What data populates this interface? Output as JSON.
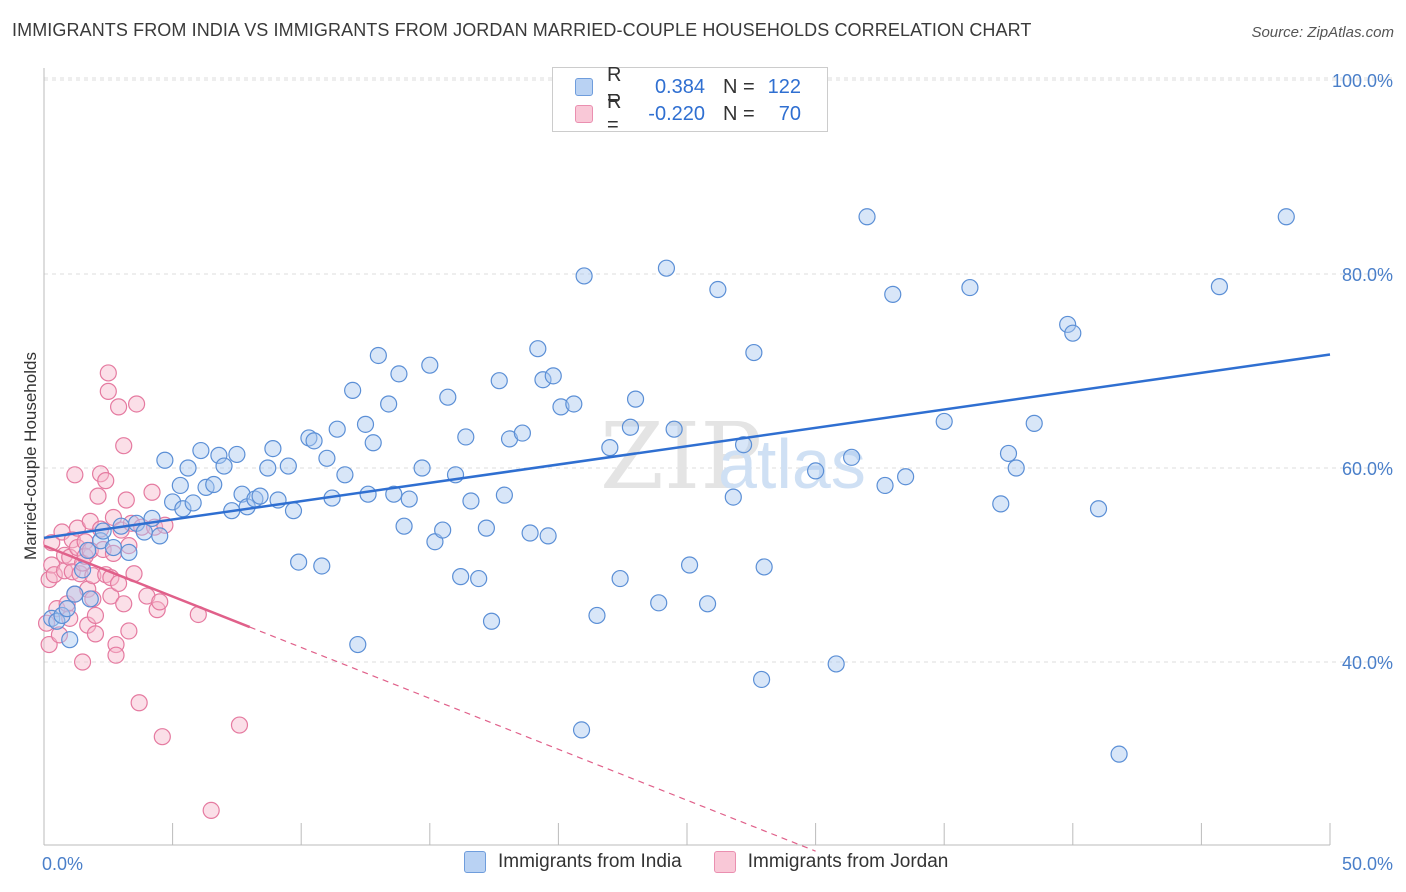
{
  "title": "IMMIGRANTS FROM INDIA VS IMMIGRANTS FROM JORDAN MARRIED-COUPLE HOUSEHOLDS CORRELATION CHART",
  "source": "Source: ZipAtlas.com",
  "watermark": {
    "zip": "ZIP",
    "atlas": "atlas"
  },
  "legend": {
    "india": {
      "r_label": "R =",
      "r_value": "0.384",
      "n_label": "N =",
      "n_value": "122"
    },
    "jordan": {
      "r_label": "R =",
      "r_value": "-0.220",
      "n_label": "N =",
      "n_value": "70"
    }
  },
  "colors": {
    "india_fill": "#a8c8f0",
    "india_stroke": "#5b8fd6",
    "india_line": "#2f6fd1",
    "jordan_fill": "#f6b8cb",
    "jordan_stroke": "#e57aa0",
    "jordan_line": "#e0608a",
    "axis_text": "#4a7fc9",
    "grid": "#dddddd"
  },
  "chart_data": {
    "type": "scatter",
    "title": "IMMIGRANTS FROM INDIA VS IMMIGRANTS FROM JORDAN MARRIED-COUPLE HOUSEHOLDS CORRELATION CHART",
    "xlabel": "",
    "ylabel": "Married-couple Households",
    "xlim": [
      0,
      50
    ],
    "ylim": [
      20,
      100
    ],
    "x_tick_labels": {
      "left": "0.0%",
      "right": "50.0%"
    },
    "y_ticks": [
      {
        "value": 100,
        "label": "100.0%"
      },
      {
        "value": 80,
        "label": "80.0%"
      },
      {
        "value": 60,
        "label": "60.0%"
      },
      {
        "value": 40,
        "label": "40.0%"
      }
    ],
    "series": [
      {
        "name": "Immigrants from India",
        "trend": {
          "x": [
            0,
            50
          ],
          "y": [
            52.8,
            71.7
          ],
          "dashed_extension": false
        },
        "points": [
          [
            0.3,
            44.5
          ],
          [
            0.5,
            44.2
          ],
          [
            0.7,
            44.8
          ],
          [
            0.9,
            45.5
          ],
          [
            1.0,
            42.3
          ],
          [
            1.2,
            47.0
          ],
          [
            1.5,
            49.5
          ],
          [
            1.7,
            51.5
          ],
          [
            1.8,
            46.5
          ],
          [
            2.2,
            52.5
          ],
          [
            2.3,
            53.5
          ],
          [
            2.7,
            51.8
          ],
          [
            3.0,
            54.0
          ],
          [
            3.3,
            51.3
          ],
          [
            3.6,
            54.3
          ],
          [
            3.9,
            53.4
          ],
          [
            4.2,
            54.8
          ],
          [
            4.5,
            53.0
          ],
          [
            4.7,
            60.8
          ],
          [
            5.0,
            56.5
          ],
          [
            5.3,
            58.2
          ],
          [
            5.4,
            55.8
          ],
          [
            5.6,
            60.0
          ],
          [
            5.8,
            56.4
          ],
          [
            6.1,
            61.8
          ],
          [
            6.3,
            58.0
          ],
          [
            6.6,
            58.3
          ],
          [
            6.8,
            61.3
          ],
          [
            7.0,
            60.2
          ],
          [
            7.3,
            55.6
          ],
          [
            7.5,
            61.4
          ],
          [
            7.7,
            57.3
          ],
          [
            7.9,
            56.0
          ],
          [
            8.2,
            56.8
          ],
          [
            8.4,
            57.1
          ],
          [
            8.7,
            60.0
          ],
          [
            8.9,
            62.0
          ],
          [
            9.1,
            56.7
          ],
          [
            9.5,
            60.2
          ],
          [
            9.7,
            55.6
          ],
          [
            9.9,
            50.3
          ],
          [
            10.3,
            63.1
          ],
          [
            10.5,
            62.8
          ],
          [
            10.8,
            49.9
          ],
          [
            11.0,
            61.0
          ],
          [
            11.2,
            56.9
          ],
          [
            11.4,
            64.0
          ],
          [
            11.7,
            59.3
          ],
          [
            12.0,
            68.0
          ],
          [
            12.2,
            41.8
          ],
          [
            12.5,
            64.5
          ],
          [
            12.6,
            57.3
          ],
          [
            12.8,
            62.6
          ],
          [
            13.0,
            71.6
          ],
          [
            13.4,
            66.6
          ],
          [
            13.6,
            57.3
          ],
          [
            13.8,
            69.7
          ],
          [
            14.0,
            54.0
          ],
          [
            14.2,
            56.8
          ],
          [
            14.7,
            60.0
          ],
          [
            15.0,
            70.6
          ],
          [
            15.2,
            52.4
          ],
          [
            15.5,
            53.6
          ],
          [
            15.7,
            67.3
          ],
          [
            16.0,
            59.3
          ],
          [
            16.2,
            48.8
          ],
          [
            16.4,
            63.2
          ],
          [
            16.6,
            56.6
          ],
          [
            16.9,
            48.6
          ],
          [
            17.2,
            53.8
          ],
          [
            17.4,
            44.2
          ],
          [
            17.7,
            69.0
          ],
          [
            17.9,
            57.2
          ],
          [
            18.1,
            63.0
          ],
          [
            18.6,
            63.6
          ],
          [
            18.9,
            53.3
          ],
          [
            19.2,
            72.3
          ],
          [
            19.4,
            69.1
          ],
          [
            19.6,
            53.0
          ],
          [
            19.8,
            69.5
          ],
          [
            20.1,
            66.3
          ],
          [
            20.6,
            66.6
          ],
          [
            20.9,
            33.0
          ],
          [
            21.0,
            79.8
          ],
          [
            21.5,
            44.8
          ],
          [
            22.0,
            62.1
          ],
          [
            22.4,
            48.6
          ],
          [
            22.8,
            64.2
          ],
          [
            23.0,
            67.1
          ],
          [
            23.9,
            46.1
          ],
          [
            24.2,
            80.6
          ],
          [
            24.5,
            64.0
          ],
          [
            25.1,
            50.0
          ],
          [
            25.8,
            46.0
          ],
          [
            26.2,
            78.4
          ],
          [
            26.8,
            57.0
          ],
          [
            27.2,
            62.4
          ],
          [
            27.6,
            71.9
          ],
          [
            27.9,
            38.2
          ],
          [
            28.0,
            49.8
          ],
          [
            30.0,
            59.7
          ],
          [
            30.8,
            39.8
          ],
          [
            31.4,
            61.1
          ],
          [
            32.0,
            85.9
          ],
          [
            32.7,
            58.2
          ],
          [
            33.0,
            77.9
          ],
          [
            33.5,
            59.1
          ],
          [
            35.0,
            64.8
          ],
          [
            36.0,
            78.6
          ],
          [
            37.2,
            56.3
          ],
          [
            37.5,
            61.5
          ],
          [
            37.8,
            60.0
          ],
          [
            38.5,
            64.6
          ],
          [
            39.8,
            74.8
          ],
          [
            40.0,
            73.9
          ],
          [
            41.0,
            55.8
          ],
          [
            41.8,
            30.5
          ],
          [
            45.7,
            78.7
          ],
          [
            48.3,
            85.9
          ]
        ]
      },
      {
        "name": "Immigrants from Jordan",
        "trend": {
          "x": [
            0,
            8
          ],
          "y": [
            52.0,
            43.6
          ],
          "dashed_extension": {
            "x": [
              8,
              30
            ],
            "y": [
              43.6,
              20.5
            ]
          }
        },
        "points": [
          [
            0.1,
            44.0
          ],
          [
            0.2,
            41.8
          ],
          [
            0.2,
            48.5
          ],
          [
            0.3,
            50.0
          ],
          [
            0.3,
            52.3
          ],
          [
            0.4,
            49.0
          ],
          [
            0.5,
            45.5
          ],
          [
            0.6,
            42.8
          ],
          [
            0.7,
            53.4
          ],
          [
            0.8,
            49.4
          ],
          [
            0.8,
            51.0
          ],
          [
            0.9,
            46.0
          ],
          [
            1.0,
            44.5
          ],
          [
            1.0,
            50.8
          ],
          [
            1.1,
            52.6
          ],
          [
            1.1,
            49.3
          ],
          [
            1.2,
            59.3
          ],
          [
            1.2,
            47.0
          ],
          [
            1.3,
            51.8
          ],
          [
            1.3,
            53.8
          ],
          [
            1.4,
            49.1
          ],
          [
            1.5,
            40.0
          ],
          [
            1.5,
            50.2
          ],
          [
            1.6,
            52.4
          ],
          [
            1.6,
            50.9
          ],
          [
            1.7,
            43.8
          ],
          [
            1.7,
            47.5
          ],
          [
            1.8,
            51.5
          ],
          [
            1.8,
            54.5
          ],
          [
            1.9,
            48.9
          ],
          [
            1.9,
            46.5
          ],
          [
            2.0,
            44.8
          ],
          [
            2.0,
            42.9
          ],
          [
            2.1,
            57.1
          ],
          [
            2.2,
            59.4
          ],
          [
            2.2,
            53.7
          ],
          [
            2.3,
            51.6
          ],
          [
            2.4,
            58.7
          ],
          [
            2.4,
            49.0
          ],
          [
            2.5,
            67.9
          ],
          [
            2.5,
            69.8
          ],
          [
            2.6,
            46.8
          ],
          [
            2.6,
            48.7
          ],
          [
            2.7,
            54.9
          ],
          [
            2.7,
            51.2
          ],
          [
            2.8,
            41.8
          ],
          [
            2.8,
            40.7
          ],
          [
            2.9,
            66.3
          ],
          [
            2.9,
            48.1
          ],
          [
            3.0,
            53.6
          ],
          [
            3.1,
            46.0
          ],
          [
            3.1,
            62.3
          ],
          [
            3.2,
            56.7
          ],
          [
            3.3,
            43.2
          ],
          [
            3.3,
            52.0
          ],
          [
            3.4,
            54.3
          ],
          [
            3.5,
            49.1
          ],
          [
            3.6,
            66.6
          ],
          [
            3.7,
            35.8
          ],
          [
            3.8,
            53.9
          ],
          [
            4.0,
            46.8
          ],
          [
            4.2,
            57.5
          ],
          [
            4.3,
            53.9
          ],
          [
            4.4,
            45.4
          ],
          [
            4.5,
            46.2
          ],
          [
            4.6,
            32.3
          ],
          [
            4.7,
            54.1
          ],
          [
            6.0,
            44.9
          ],
          [
            6.5,
            24.7
          ],
          [
            7.6,
            33.5
          ]
        ]
      }
    ]
  }
}
